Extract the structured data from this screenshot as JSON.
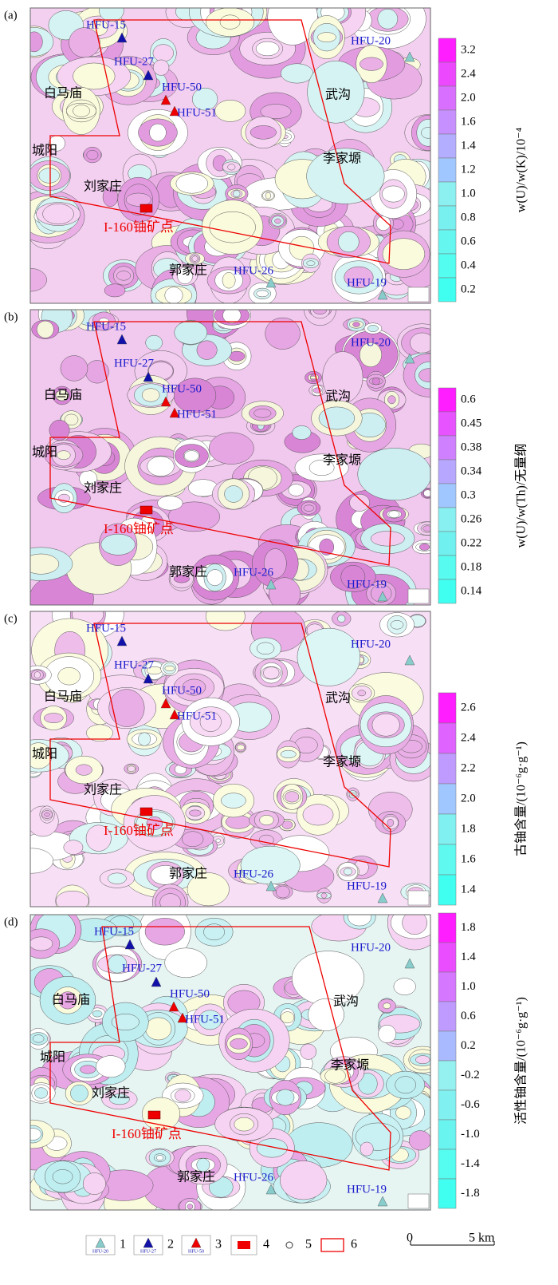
{
  "panels": [
    {
      "label": "(a)",
      "colorbar": {
        "title": "w(U)/w(K)/10⁻⁴",
        "ticks": [
          "3.2",
          "2.4",
          "2.0",
          "1.6",
          "1.4",
          "1.2",
          "1.0",
          "0.8",
          "0.6",
          "0.4",
          "0.2"
        ]
      }
    },
    {
      "label": "(b)",
      "colorbar": {
        "title": "w(U)/w(Th)/无量纲",
        "ticks": [
          "0.6",
          "0.45",
          "0.38",
          "0.34",
          "0.3",
          "0.26",
          "0.22",
          "0.18",
          "0.14"
        ]
      }
    },
    {
      "label": "(c)",
      "colorbar": {
        "title": "古铀含量/(10⁻⁶g·g⁻¹)",
        "ticks": [
          "2.6",
          "2.4",
          "2.2",
          "2.0",
          "1.8",
          "1.6",
          "1.4"
        ]
      }
    },
    {
      "label": "(d)",
      "colorbar": {
        "title": "活性铀含量/(10⁻⁶g·g⁻¹)",
        "ticks": [
          "1.8",
          "1.4",
          "1.0",
          "0.6",
          "0.2",
          "-0.2",
          "-0.6",
          "-1.0",
          "-1.4",
          "-1.8"
        ]
      }
    }
  ],
  "places": [
    "白马庙",
    "城阳",
    "刘家庄",
    "I-160铀矿点",
    "郭家庄",
    "武沟",
    "李家塬"
  ],
  "wells": [
    "HFU-15",
    "HFU-27",
    "HFU-50",
    "HFU-51",
    "HFU-20",
    "HFU-26",
    "HFU-19"
  ],
  "legend": {
    "samples": [
      "HFU-20",
      "HFU-27",
      "HFU-50"
    ],
    "items": [
      "1",
      "2",
      "3",
      "4",
      "5",
      "6"
    ]
  },
  "scale": {
    "start": "0",
    "end": "5 km"
  }
}
